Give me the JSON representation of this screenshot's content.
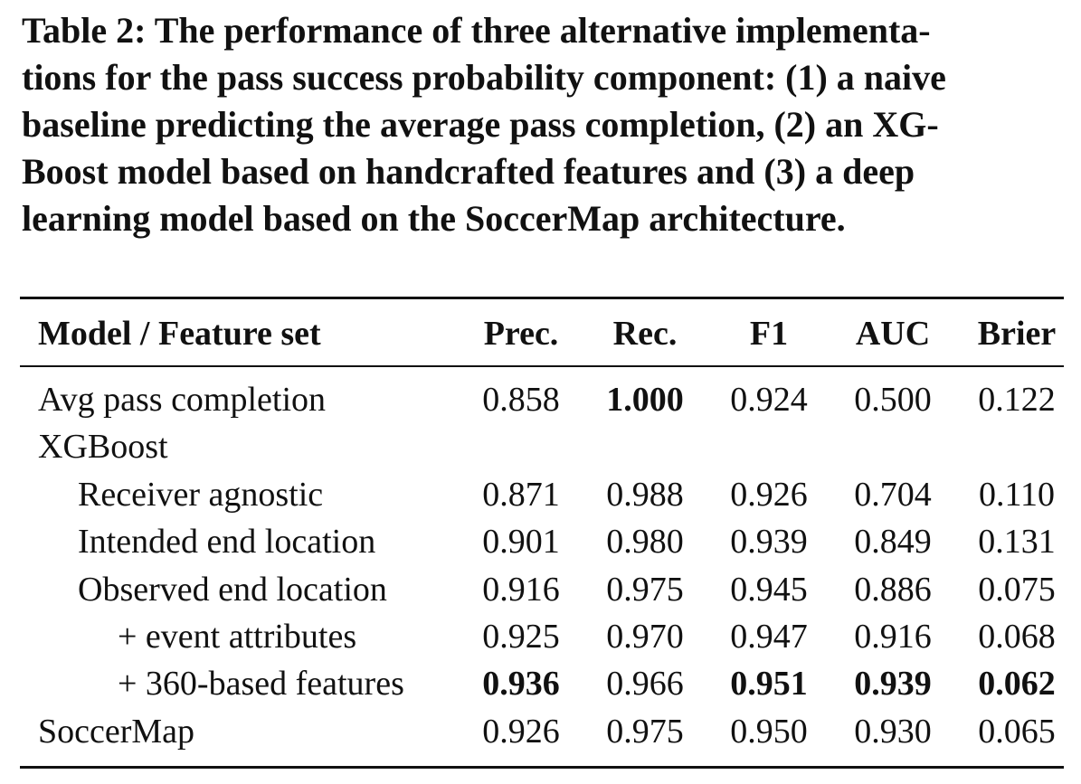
{
  "caption": "Table 2: The performance of three alternative implementations for the pass success probability component: (1) a naive baseline predicting the average pass completion, (2) an XGBoost model based on handcrafted features and (3) a deep learning model based on the SoccerMap architecture.",
  "caption_lines": [
    "Table 2: The performance of three alternative implementa-",
    "tions for the pass success probability component: (1) a naive",
    "baseline predicting the average pass completion, (2) an XG-",
    "Boost model based on handcrafted features and (3) a deep",
    "learning model based on the SoccerMap architecture."
  ],
  "table": {
    "headers": [
      "Model / Feature set",
      "Prec.",
      "Rec.",
      "F1",
      "AUC",
      "Brier"
    ],
    "rows": [
      {
        "label": "Avg pass completion",
        "indent": 0,
        "values": [
          "0.858",
          "1.000",
          "0.924",
          "0.500",
          "0.122"
        ],
        "bold": [
          false,
          true,
          false,
          false,
          false
        ]
      },
      {
        "label": "XGBoost",
        "indent": 0,
        "values": [
          "",
          "",
          "",
          "",
          ""
        ],
        "bold": [
          false,
          false,
          false,
          false,
          false
        ]
      },
      {
        "label": "Receiver agnostic",
        "indent": 1,
        "values": [
          "0.871",
          "0.988",
          "0.926",
          "0.704",
          "0.110"
        ],
        "bold": [
          false,
          false,
          false,
          false,
          false
        ]
      },
      {
        "label": "Intended end location",
        "indent": 1,
        "values": [
          "0.901",
          "0.980",
          "0.939",
          "0.849",
          "0.131"
        ],
        "bold": [
          false,
          false,
          false,
          false,
          false
        ]
      },
      {
        "label": "Observed end location",
        "indent": 1,
        "values": [
          "0.916",
          "0.975",
          "0.945",
          "0.886",
          "0.075"
        ],
        "bold": [
          false,
          false,
          false,
          false,
          false
        ]
      },
      {
        "label": "+ event attributes",
        "indent": 2,
        "values": [
          "0.925",
          "0.970",
          "0.947",
          "0.916",
          "0.068"
        ],
        "bold": [
          false,
          false,
          false,
          false,
          false
        ]
      },
      {
        "label": "+ 360-based features",
        "indent": 2,
        "values": [
          "0.936",
          "0.966",
          "0.951",
          "0.939",
          "0.062"
        ],
        "bold": [
          true,
          false,
          true,
          true,
          true
        ]
      },
      {
        "label": "SoccerMap",
        "indent": 0,
        "values": [
          "0.926",
          "0.975",
          "0.950",
          "0.930",
          "0.065"
        ],
        "bold": [
          false,
          false,
          false,
          false,
          false
        ]
      }
    ]
  }
}
